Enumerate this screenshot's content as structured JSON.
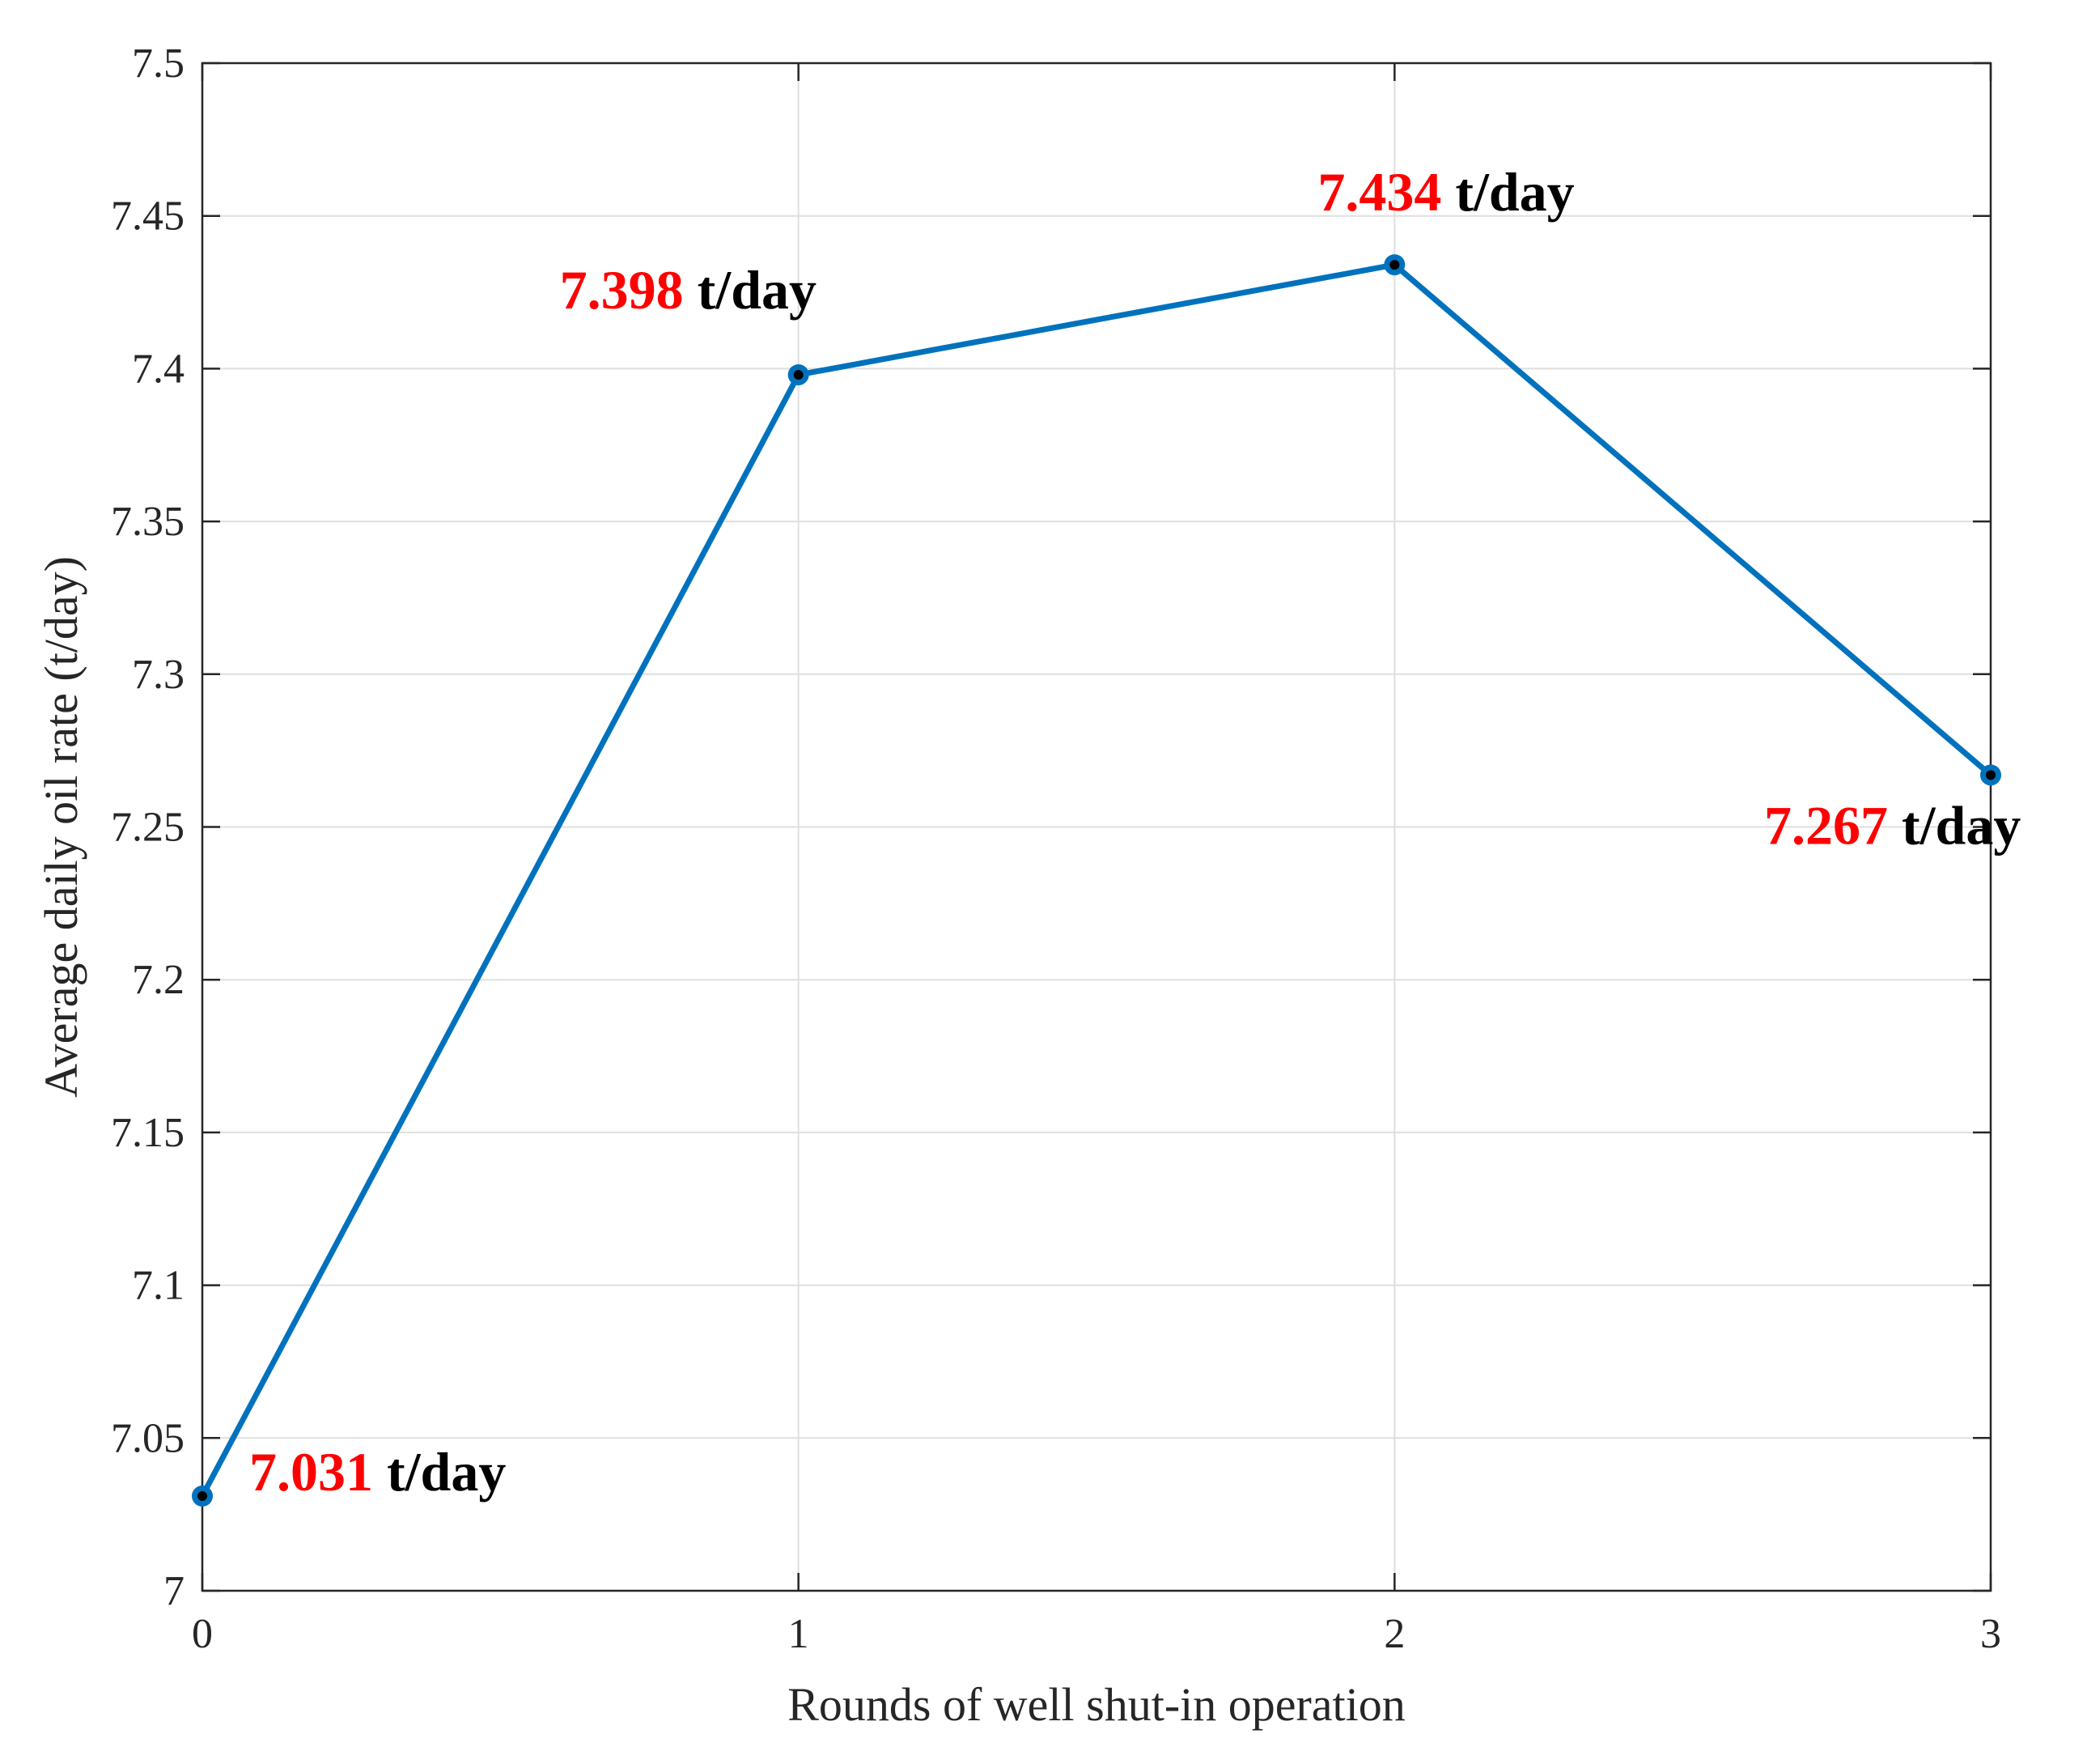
{
  "chart_data": {
    "type": "line",
    "title": "",
    "xlabel": "Rounds of well shut-in operation",
    "ylabel": "Average daily oil rate (t/day)",
    "xlim": [
      0,
      3
    ],
    "ylim": [
      7,
      7.5
    ],
    "x_ticks": [
      "0",
      "1",
      "2",
      "3"
    ],
    "y_ticks": [
      "7",
      "7.05",
      "7.1",
      "7.15",
      "7.2",
      "7.25",
      "7.3",
      "7.35",
      "7.4",
      "7.45",
      "7.5"
    ],
    "grid": true,
    "series": [
      {
        "x": [
          0,
          1,
          2,
          3
        ],
        "values": [
          7.031,
          7.398,
          7.434,
          7.267
        ]
      }
    ],
    "annotations": [
      {
        "value": "7.031",
        "unit": " t/day"
      },
      {
        "value": "7.398",
        "unit": " t/day"
      },
      {
        "value": "7.434",
        "unit": " t/day"
      },
      {
        "value": "7.267",
        "unit": " t/day"
      }
    ],
    "colors": {
      "line": "#0072BD",
      "marker_center": "#000000",
      "annotation_value": "#FF0000",
      "annotation_unit": "#000000",
      "grid": "#DFDFDF",
      "axis": "#262626"
    }
  }
}
